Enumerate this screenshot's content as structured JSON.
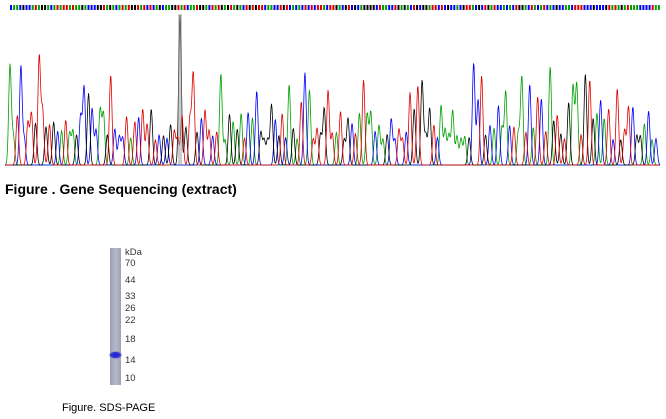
{
  "figures": {
    "sequencing": {
      "caption": "Figure . Gene Sequencing (extract)"
    },
    "gel": {
      "unit": "kDa",
      "markers": [
        70,
        44,
        33,
        26,
        22,
        18,
        14,
        10
      ],
      "caption": "Figure. SDS-PAGE"
    }
  }
}
